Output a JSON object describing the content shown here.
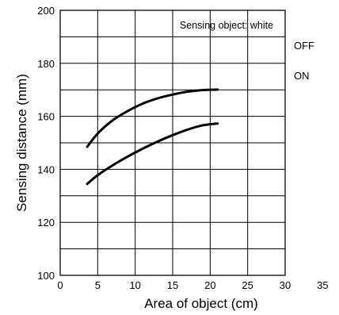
{
  "chart_data": {
    "type": "line",
    "title": "",
    "xlabel": "Area of object (cm)",
    "ylabel": "Sensing distance (mm)",
    "xlim": [
      0,
      30
    ],
    "ylim": [
      100,
      200
    ],
    "xticks": [
      0,
      5,
      10,
      15,
      20,
      25,
      30,
      35
    ],
    "yticks": [
      100,
      120,
      140,
      160,
      180,
      200
    ],
    "grid": true,
    "annotation": "Sensing object: white",
    "series": [
      {
        "name": "OFF",
        "x": [
          3.6,
          5,
          7,
          9,
          11,
          13,
          15,
          17,
          19,
          21
        ],
        "y": [
          148.5,
          153.5,
          158.5,
          162.0,
          164.8,
          166.8,
          168.2,
          169.3,
          169.9,
          170.1
        ]
      },
      {
        "name": "ON",
        "x": [
          3.6,
          5,
          7,
          9,
          11,
          13,
          15,
          17,
          19,
          21
        ],
        "y": [
          134.5,
          137.8,
          141.5,
          144.8,
          147.8,
          150.5,
          152.9,
          155.0,
          156.6,
          157.3
        ]
      }
    ]
  }
}
